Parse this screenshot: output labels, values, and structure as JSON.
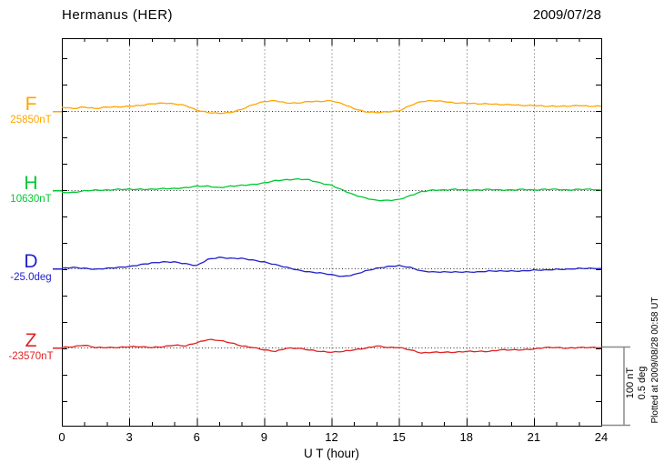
{
  "chart_data": {
    "type": "line",
    "title": "Hermanus (HER)",
    "date": "2009/07/28",
    "xlabel": "U T (hour)",
    "x_range": [
      0,
      24
    ],
    "x_ticks": [
      0,
      3,
      6,
      9,
      12,
      15,
      18,
      21,
      24
    ],
    "x_minor_step_hours": 1,
    "grid": "dotted vertical lines every 3 hours; dotted horizontal baseline per trace",
    "sample_step_hours": 0.5,
    "scale_bar": {
      "line1": "100 nT",
      "line2": "0.5 deg",
      "nT_per_bar": 100,
      "deg_per_bar": 0.5
    },
    "plotted_at": "Plotted at 2009/08/28 00:58 UT",
    "series": [
      {
        "name": "F",
        "baseline_label": "25850nT",
        "baseline_value": 25850,
        "unit": "nT",
        "color": "#FFA500",
        "offsets": [
          5,
          3,
          5,
          3,
          5,
          5,
          6,
          7,
          9,
          10,
          9,
          7,
          1,
          -2,
          -3,
          -2,
          2,
          8,
          12,
          13,
          10,
          10,
          12,
          12,
          13,
          9,
          3,
          -1,
          -2,
          -1,
          0,
          7,
          12,
          13,
          12,
          10,
          10,
          9,
          9,
          8,
          8,
          7,
          7,
          6,
          6,
          6,
          7,
          6,
          6
        ]
      },
      {
        "name": "H",
        "baseline_label": "10630nT",
        "baseline_value": 10630,
        "unit": "nT",
        "color": "#00C832",
        "offsets": [
          -3,
          -3,
          -1,
          0,
          0,
          1,
          1,
          1,
          1,
          2,
          2,
          3,
          5,
          5,
          3,
          5,
          6,
          7,
          9,
          12,
          13,
          14,
          13,
          9,
          6,
          0,
          -6,
          -10,
          -13,
          -13,
          -12,
          -7,
          -2,
          0,
          0,
          1,
          0,
          0,
          1,
          0,
          0,
          1,
          0,
          1,
          1,
          0,
          1,
          1,
          0
        ]
      },
      {
        "name": "D",
        "baseline_label": "-25.0deg",
        "baseline_value": -25.0,
        "unit": "deg",
        "color": "#2222CC",
        "offsets": [
          0,
          0.006,
          0,
          -0.006,
          0,
          0.006,
          0.011,
          0.023,
          0.034,
          0.04,
          0.04,
          0.029,
          0.017,
          0.057,
          0.069,
          0.063,
          0.063,
          0.052,
          0.04,
          0.023,
          0.006,
          -0.011,
          -0.023,
          -0.029,
          -0.04,
          -0.052,
          -0.04,
          -0.017,
          0,
          0.011,
          0.017,
          0.006,
          -0.017,
          -0.023,
          -0.023,
          -0.023,
          -0.023,
          -0.023,
          -0.017,
          -0.017,
          -0.017,
          -0.017,
          -0.011,
          -0.011,
          -0.006,
          -0.006,
          0,
          0,
          0
        ]
      },
      {
        "name": "Z",
        "baseline_label": "-23570nT",
        "baseline_value": -23570,
        "unit": "nT",
        "color": "#E02222",
        "offsets": [
          0,
          1,
          3,
          0,
          0,
          0,
          1,
          1,
          0,
          1,
          3,
          2,
          6,
          10,
          9,
          6,
          2,
          0,
          -3,
          -5,
          -1,
          -1,
          -3,
          -5,
          -6,
          -5,
          -3,
          -1,
          2,
          0,
          0,
          -3,
          -7,
          -6,
          -6,
          -6,
          -5,
          -5,
          -5,
          -3,
          -3,
          -3,
          -2,
          0,
          0,
          -1,
          0,
          0,
          0
        ]
      }
    ]
  }
}
